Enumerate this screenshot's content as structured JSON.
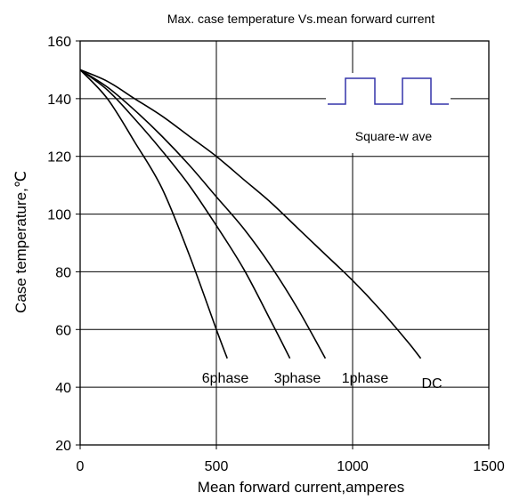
{
  "chart_data": {
    "type": "line",
    "title": "Max. case temperature  Vs.mean forward current",
    "xlabel": "Mean forward  current,amperes",
    "ylabel": "Case temperature,℃",
    "xlim": [
      0,
      1500
    ],
    "ylim": [
      20,
      160
    ],
    "x_ticks": [
      "0",
      "500",
      "1000",
      "1500"
    ],
    "y_ticks": [
      "20",
      "40",
      "60",
      "80",
      "100",
      "120",
      "140",
      "160"
    ],
    "grid": true,
    "series": [
      {
        "name": "6phase",
        "x": [
          0,
          100,
          200,
          300,
          400,
          500,
          540
        ],
        "y": [
          150,
          140,
          125,
          109,
          86,
          60,
          50
        ]
      },
      {
        "name": "3phase",
        "x": [
          0,
          100,
          200,
          300,
          400,
          500,
          600,
          700,
          770
        ],
        "y": [
          150,
          143,
          133,
          122,
          110,
          96,
          81,
          63,
          50
        ]
      },
      {
        "name": "1phase",
        "x": [
          0,
          100,
          200,
          300,
          400,
          500,
          600,
          700,
          800,
          900
        ],
        "y": [
          150,
          144,
          136,
          127,
          117,
          106,
          95,
          82,
          67,
          50
        ]
      },
      {
        "name": "DC",
        "x": [
          0,
          100,
          200,
          300,
          400,
          500,
          600,
          700,
          800,
          900,
          1000,
          1100,
          1200,
          1250
        ],
        "y": [
          150,
          146,
          140,
          134,
          127,
          120,
          112,
          104,
          95,
          86,
          77,
          67,
          56,
          50
        ]
      }
    ],
    "inset": {
      "label": "Square-w ave",
      "color": "#3333aa"
    }
  }
}
